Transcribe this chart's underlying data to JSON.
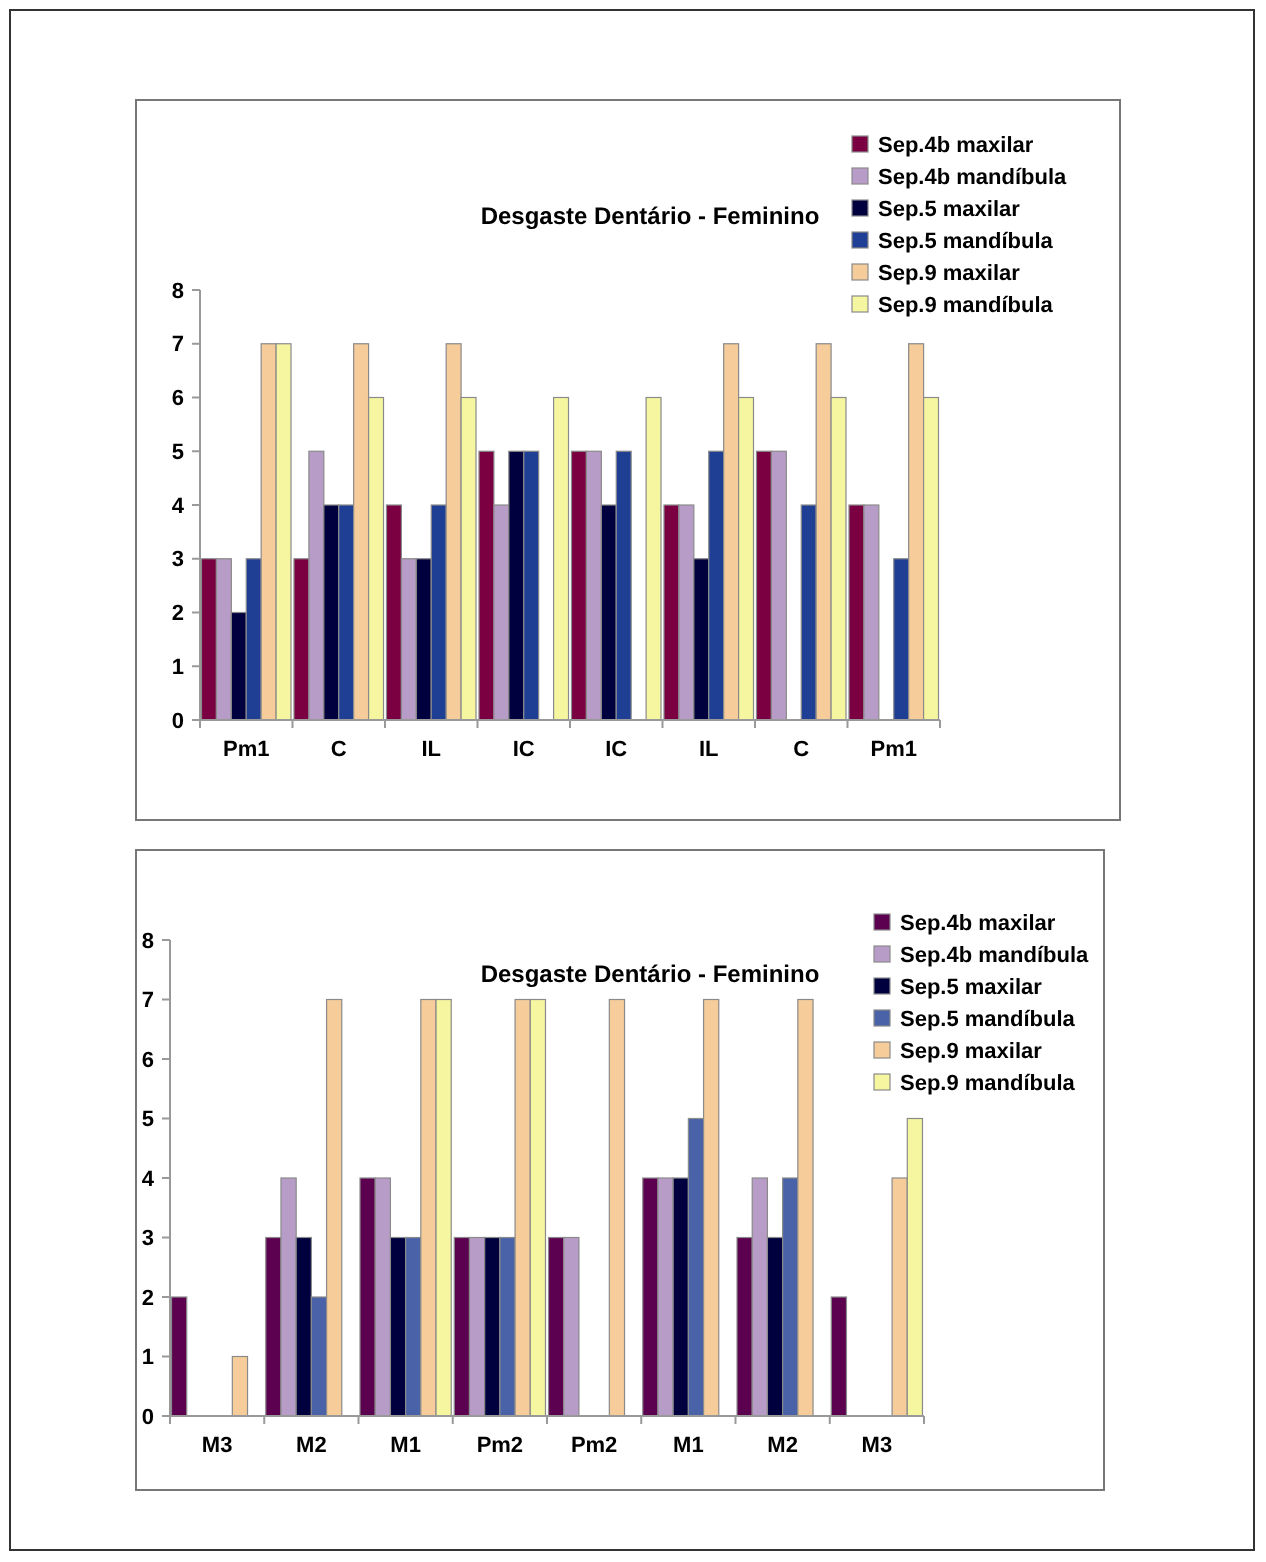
{
  "chart_data": [
    {
      "type": "bar",
      "title": "Desgaste Dentário - Feminino",
      "categories": [
        "Pm1",
        "C",
        "IL",
        "IC",
        "IC",
        "IL",
        "C",
        "Pm1"
      ],
      "series": [
        {
          "name": "Sep.4b maxilar",
          "color": "#7b0041",
          "values": [
            3,
            3,
            4,
            5,
            5,
            4,
            5,
            4
          ]
        },
        {
          "name": "Sep.4b mandíbula",
          "color": "#b89cc8",
          "values": [
            3,
            5,
            3,
            4,
            5,
            4,
            5,
            4
          ]
        },
        {
          "name": "Sep.5 maxilar",
          "color": "#00003f",
          "values": [
            2,
            4,
            3,
            5,
            4,
            3,
            null,
            null
          ]
        },
        {
          "name": "Sep.5 mandíbula",
          "color": "#1e3f94",
          "values": [
            3,
            4,
            4,
            5,
            5,
            5,
            4,
            3
          ]
        },
        {
          "name": "Sep.9 maxilar",
          "color": "#f6cc9a",
          "values": [
            7,
            7,
            7,
            null,
            null,
            7,
            7,
            7
          ]
        },
        {
          "name": "Sep.9 mandíbula",
          "color": "#f6f6a0",
          "values": [
            7,
            6,
            6,
            6,
            6,
            6,
            6,
            6
          ]
        }
      ],
      "ylim": [
        0,
        8
      ],
      "yticks": [
        0,
        1,
        2,
        3,
        4,
        5,
        6,
        7,
        8
      ],
      "grid": false,
      "legend": "top right"
    },
    {
      "type": "bar",
      "title": "Desgaste Dentário - Feminino",
      "categories": [
        "M3",
        "M2",
        "M1",
        "Pm2",
        "Pm2",
        "M1",
        "M2",
        "M3"
      ],
      "series": [
        {
          "name": "Sep.4b maxilar",
          "color": "#5c0050",
          "values": [
            2,
            3,
            4,
            3,
            3,
            4,
            3,
            2
          ]
        },
        {
          "name": "Sep.4b mandíbula",
          "color": "#b89cc8",
          "values": [
            null,
            4,
            4,
            3,
            3,
            4,
            4,
            null
          ]
        },
        {
          "name": "Sep.5 maxilar",
          "color": "#00003f",
          "values": [
            null,
            3,
            3,
            3,
            null,
            4,
            3,
            null
          ]
        },
        {
          "name": "Sep.5 mandíbula",
          "color": "#4a63a8",
          "values": [
            null,
            2,
            3,
            3,
            null,
            5,
            4,
            null
          ]
        },
        {
          "name": "Sep.9 maxilar",
          "color": "#f6cc9a",
          "values": [
            1,
            7,
            7,
            7,
            7,
            7,
            7,
            4
          ]
        },
        {
          "name": "Sep.9 mandíbula",
          "color": "#f6f6a0",
          "values": [
            null,
            null,
            7,
            7,
            null,
            null,
            null,
            5
          ]
        }
      ],
      "ylim": [
        0,
        8
      ],
      "yticks": [
        0,
        1,
        2,
        3,
        4,
        5,
        6,
        7,
        8
      ],
      "grid": false,
      "legend": "top right"
    }
  ]
}
